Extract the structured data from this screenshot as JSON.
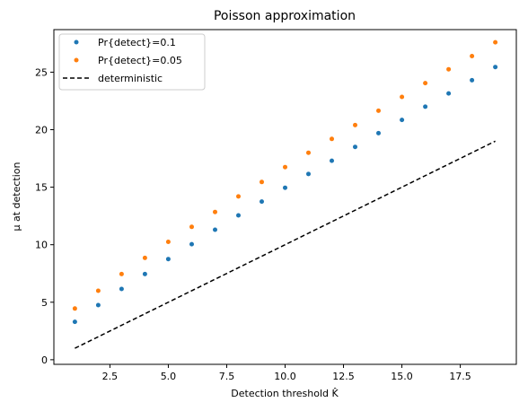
{
  "chart_data": {
    "type": "scatter",
    "title": "Poisson approximation",
    "xlabel": "Detection threshold K̂",
    "ylabel": "μ at detection",
    "xlim": [
      0.1,
      19.9
    ],
    "ylim": [
      -0.4,
      28.7
    ],
    "xticks": [
      2.5,
      5.0,
      7.5,
      10.0,
      12.5,
      15.0,
      17.5
    ],
    "xtick_labels": [
      "2.5",
      "5.0",
      "7.5",
      "10.0",
      "12.5",
      "15.0",
      "17.5"
    ],
    "yticks": [
      0,
      5,
      10,
      15,
      20,
      25
    ],
    "ytick_labels": [
      "0",
      "5",
      "10",
      "15",
      "20",
      "25"
    ],
    "grid": false,
    "legend_position": "top-left",
    "series": [
      {
        "name": "Pr{detect}=0.1",
        "kind": "scatter",
        "color": "#1f77b4",
        "x": [
          1,
          2,
          3,
          4,
          5,
          6,
          7,
          8,
          9,
          10,
          11,
          12,
          13,
          14,
          15,
          16,
          17,
          18,
          19
        ],
        "y": [
          3.3,
          4.75,
          6.15,
          7.45,
          8.75,
          10.05,
          11.3,
          12.55,
          13.75,
          14.95,
          16.15,
          17.3,
          18.5,
          19.7,
          20.85,
          22.0,
          23.15,
          24.3,
          25.45
        ]
      },
      {
        "name": "Pr{detect}=0.05",
        "kind": "scatter",
        "color": "#ff7f0e",
        "x": [
          1,
          2,
          3,
          4,
          5,
          6,
          7,
          8,
          9,
          10,
          11,
          12,
          13,
          14,
          15,
          16,
          17,
          18,
          19
        ],
        "y": [
          4.45,
          6.0,
          7.45,
          8.85,
          10.25,
          11.55,
          12.85,
          14.2,
          15.45,
          16.75,
          18.0,
          19.2,
          20.4,
          21.65,
          22.85,
          24.05,
          25.25,
          26.4,
          27.6
        ]
      },
      {
        "name": "deterministic",
        "kind": "line",
        "style": "dashed",
        "color": "#000000",
        "x": [
          1,
          19
        ],
        "y": [
          1,
          19
        ]
      }
    ]
  }
}
